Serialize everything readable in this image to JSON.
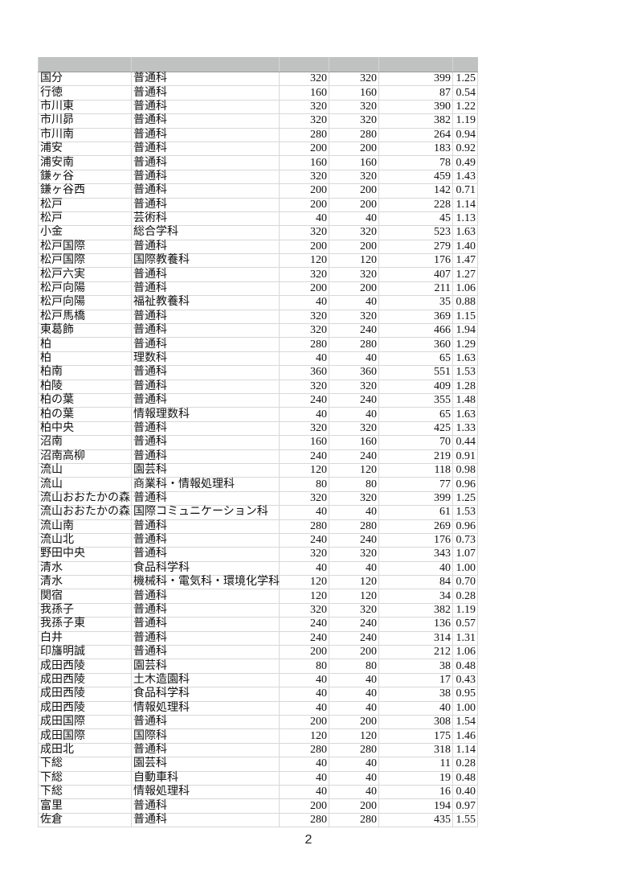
{
  "table": {
    "header": [
      "",
      "",
      "",
      "",
      "",
      ""
    ],
    "rows": [
      [
        "国分",
        "普通科",
        "320",
        "320",
        "399",
        "1.25"
      ],
      [
        "行徳",
        "普通科",
        "160",
        "160",
        "87",
        "0.54"
      ],
      [
        "市川東",
        "普通科",
        "320",
        "320",
        "390",
        "1.22"
      ],
      [
        "市川昴",
        "普通科",
        "320",
        "320",
        "382",
        "1.19"
      ],
      [
        "市川南",
        "普通科",
        "280",
        "280",
        "264",
        "0.94"
      ],
      [
        "浦安",
        "普通科",
        "200",
        "200",
        "183",
        "0.92"
      ],
      [
        "浦安南",
        "普通科",
        "160",
        "160",
        "78",
        "0.49"
      ],
      [
        "鎌ヶ谷",
        "普通科",
        "320",
        "320",
        "459",
        "1.43"
      ],
      [
        "鎌ヶ谷西",
        "普通科",
        "200",
        "200",
        "142",
        "0.71"
      ],
      [
        "松戸",
        "普通科",
        "200",
        "200",
        "228",
        "1.14"
      ],
      [
        "松戸",
        "芸術科",
        "40",
        "40",
        "45",
        "1.13"
      ],
      [
        "小金",
        "総合学科",
        "320",
        "320",
        "523",
        "1.63"
      ],
      [
        "松戸国際",
        "普通科",
        "200",
        "200",
        "279",
        "1.40"
      ],
      [
        "松戸国際",
        "国際教養科",
        "120",
        "120",
        "176",
        "1.47"
      ],
      [
        "松戸六実",
        "普通科",
        "320",
        "320",
        "407",
        "1.27"
      ],
      [
        "松戸向陽",
        "普通科",
        "200",
        "200",
        "211",
        "1.06"
      ],
      [
        "松戸向陽",
        "福祉教養科",
        "40",
        "40",
        "35",
        "0.88"
      ],
      [
        "松戸馬橋",
        "普通科",
        "320",
        "320",
        "369",
        "1.15"
      ],
      [
        "東葛飾",
        "普通科",
        "320",
        "240",
        "466",
        "1.94"
      ],
      [
        "柏",
        "普通科",
        "280",
        "280",
        "360",
        "1.29"
      ],
      [
        "柏",
        "理数科",
        "40",
        "40",
        "65",
        "1.63"
      ],
      [
        "柏南",
        "普通科",
        "360",
        "360",
        "551",
        "1.53"
      ],
      [
        "柏陵",
        "普通科",
        "320",
        "320",
        "409",
        "1.28"
      ],
      [
        "柏の葉",
        "普通科",
        "240",
        "240",
        "355",
        "1.48"
      ],
      [
        "柏の葉",
        "情報理数科",
        "40",
        "40",
        "65",
        "1.63"
      ],
      [
        "柏中央",
        "普通科",
        "320",
        "320",
        "425",
        "1.33"
      ],
      [
        "沼南",
        "普通科",
        "160",
        "160",
        "70",
        "0.44"
      ],
      [
        "沼南高柳",
        "普通科",
        "240",
        "240",
        "219",
        "0.91"
      ],
      [
        "流山",
        "園芸科",
        "120",
        "120",
        "118",
        "0.98"
      ],
      [
        "流山",
        "商業科・情報処理科",
        "80",
        "80",
        "77",
        "0.96"
      ],
      [
        "流山おおたかの森",
        "普通科",
        "320",
        "320",
        "399",
        "1.25"
      ],
      [
        "流山おおたかの森",
        "国際コミュニケーション科",
        "40",
        "40",
        "61",
        "1.53"
      ],
      [
        "流山南",
        "普通科",
        "280",
        "280",
        "269",
        "0.96"
      ],
      [
        "流山北",
        "普通科",
        "240",
        "240",
        "176",
        "0.73"
      ],
      [
        "野田中央",
        "普通科",
        "320",
        "320",
        "343",
        "1.07"
      ],
      [
        "清水",
        "食品科学科",
        "40",
        "40",
        "40",
        "1.00"
      ],
      [
        "清水",
        "機械科・電気科・環境化学科",
        "120",
        "120",
        "84",
        "0.70"
      ],
      [
        "関宿",
        "普通科",
        "120",
        "120",
        "34",
        "0.28"
      ],
      [
        "我孫子",
        "普通科",
        "320",
        "320",
        "382",
        "1.19"
      ],
      [
        "我孫子東",
        "普通科",
        "240",
        "240",
        "136",
        "0.57"
      ],
      [
        "白井",
        "普通科",
        "240",
        "240",
        "314",
        "1.31"
      ],
      [
        "印旛明誠",
        "普通科",
        "200",
        "200",
        "212",
        "1.06"
      ],
      [
        "成田西陵",
        "園芸科",
        "80",
        "80",
        "38",
        "0.48"
      ],
      [
        "成田西陵",
        "土木造園科",
        "40",
        "40",
        "17",
        "0.43"
      ],
      [
        "成田西陵",
        "食品科学科",
        "40",
        "40",
        "38",
        "0.95"
      ],
      [
        "成田西陵",
        "情報処理科",
        "40",
        "40",
        "40",
        "1.00"
      ],
      [
        "成田国際",
        "普通科",
        "200",
        "200",
        "308",
        "1.54"
      ],
      [
        "成田国際",
        "国際科",
        "120",
        "120",
        "175",
        "1.46"
      ],
      [
        "成田北",
        "普通科",
        "280",
        "280",
        "318",
        "1.14"
      ],
      [
        "下総",
        "園芸科",
        "40",
        "40",
        "11",
        "0.28"
      ],
      [
        "下総",
        "自動車科",
        "40",
        "40",
        "19",
        "0.48"
      ],
      [
        "下総",
        "情報処理科",
        "40",
        "40",
        "16",
        "0.40"
      ],
      [
        "富里",
        "普通科",
        "200",
        "200",
        "194",
        "0.97"
      ],
      [
        "佐倉",
        "普通科",
        "280",
        "280",
        "435",
        "1.55"
      ]
    ]
  },
  "footer": {
    "page_number": "2"
  }
}
